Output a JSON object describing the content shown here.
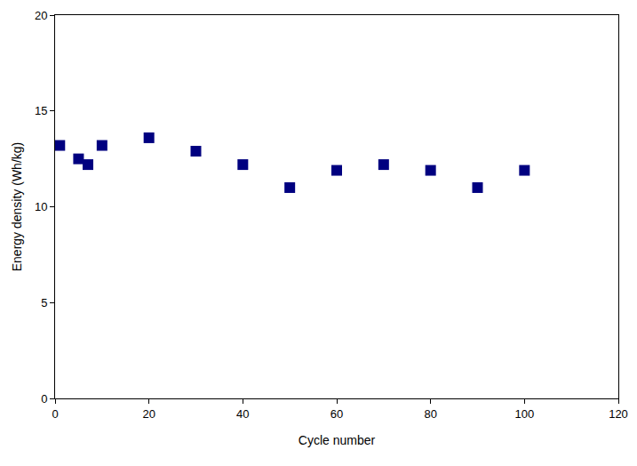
{
  "chart_data": {
    "type": "scatter",
    "x_label": "Cycle number",
    "y_label": "Energy density (Wh/kg)",
    "x": [
      1,
      5,
      7,
      10,
      20,
      30,
      40,
      50,
      60,
      70,
      80,
      90,
      100
    ],
    "values": [
      13.2,
      12.5,
      12.2,
      13.2,
      13.6,
      12.9,
      12.2,
      11.0,
      11.9,
      12.2,
      11.9,
      11.0,
      11.9
    ],
    "color": "#000080",
    "marker": "square",
    "xlim": [
      0,
      120
    ],
    "xticks": [
      0,
      20,
      40,
      60,
      80,
      100,
      120
    ],
    "ylim": [
      0,
      20
    ],
    "yticks": [
      0,
      5,
      10,
      15,
      20
    ],
    "grid": false
  }
}
